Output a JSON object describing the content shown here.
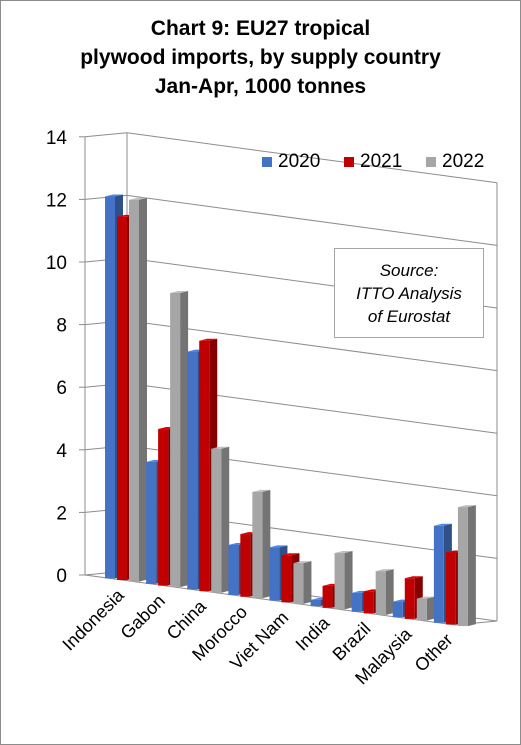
{
  "title": {
    "line1": "Chart 9: EU27 tropical",
    "line2": "plywood imports, by supply country",
    "line3": "Jan-Apr, 1000 tonnes"
  },
  "source": {
    "line1": "Source:",
    "line2": "ITTO Analysis",
    "line3": "of Eurostat"
  },
  "colors": {
    "2020": "#4472c4",
    "2021": "#c00000",
    "2022": "#a6a6a6"
  },
  "chart_data": {
    "type": "bar",
    "style": "3d-clustered-column",
    "categories": [
      "Indonesia",
      "Gabon",
      "China",
      "Morocco",
      "Viet Nam",
      "India",
      "Brazil",
      "Malaysia",
      "Other"
    ],
    "series": [
      {
        "name": "2020",
        "values": [
          12.2,
          3.9,
          7.6,
          1.6,
          1.7,
          0.2,
          0.6,
          0.5,
          3.1
        ]
      },
      {
        "name": "2021",
        "values": [
          11.6,
          5.0,
          8.0,
          2.0,
          1.5,
          0.7,
          0.7,
          1.3,
          2.3
        ]
      },
      {
        "name": "2022",
        "values": [
          12.2,
          9.4,
          4.6,
          3.4,
          1.3,
          1.8,
          1.4,
          0.7,
          3.8
        ]
      }
    ],
    "ylim": [
      0,
      14
    ],
    "yticks": [
      0,
      2,
      4,
      6,
      8,
      10,
      12,
      14
    ],
    "grid": true,
    "legend": "top-right",
    "xlabel": "",
    "ylabel": ""
  }
}
